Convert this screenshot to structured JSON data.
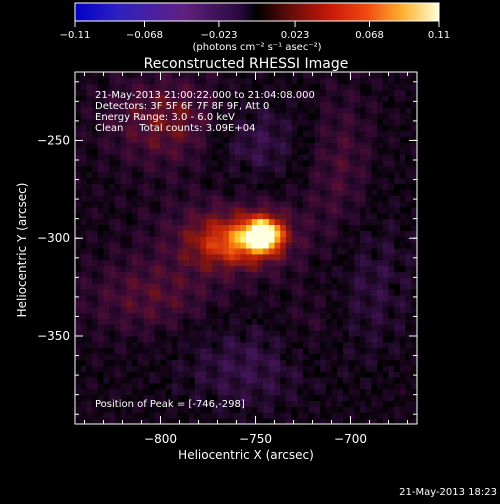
{
  "colorbar": {
    "ticks": [
      "-0.11",
      "-0.068",
      "-0.023",
      "0.023",
      "0.068",
      "0.11"
    ],
    "tick_values": [
      -0.11,
      -0.068,
      -0.023,
      0.023,
      0.068,
      0.11
    ],
    "range": [
      -0.11,
      0.11
    ],
    "units": "(photons cm⁻² s⁻¹ asec⁻²)"
  },
  "chart_data": {
    "type": "heatmap",
    "title": "Reconstructed RHESSI Image",
    "xlabel": "Heliocentric X (arcsec)",
    "ylabel": "Heliocentric Y (arcsec)",
    "xlim": [
      -845,
      -665
    ],
    "ylim": [
      -395,
      -215
    ],
    "x_ticks": [
      -800,
      -750,
      -700
    ],
    "x_tick_labels": [
      "−800",
      "−750",
      "−700"
    ],
    "y_ticks": [
      -250,
      -300,
      -350
    ],
    "y_tick_labels": [
      "−250",
      "−300",
      "−350"
    ],
    "peak": [
      -746,
      -298
    ],
    "colormap": "black-purple-red-yellow-white"
  },
  "annotations": {
    "line1": "21-May-2013 21:00:22.000 to 21:04:08.000",
    "line2": "Detectors: 3F 5F 6F 7F 8F 9F, Att 0",
    "line3": "Energy Range: 3.0 - 6.0 keV",
    "line4": "Clean     Total counts: 3.09E+04",
    "peak_label": "Position of Peak = [-746,-298]"
  },
  "footer_timestamp": "21-May-2013 18:23"
}
